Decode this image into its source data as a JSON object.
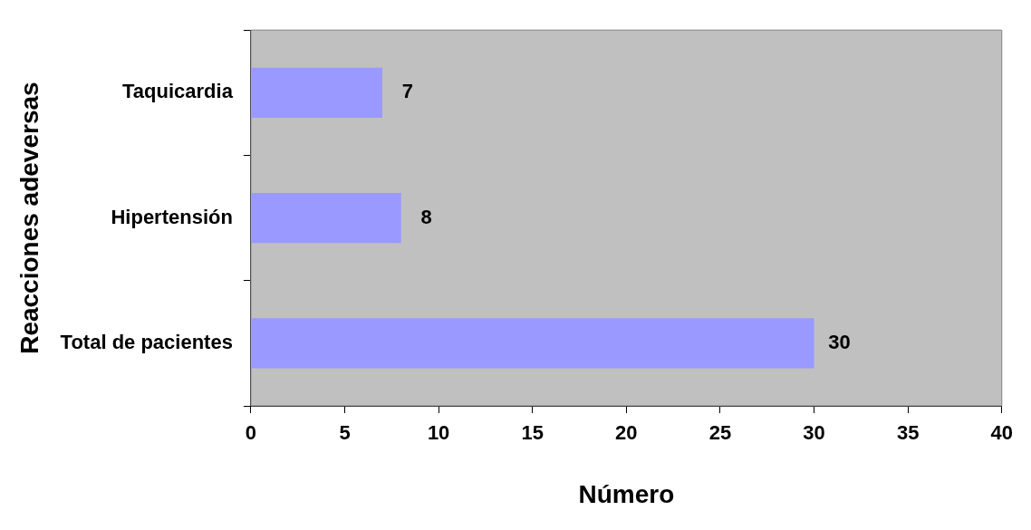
{
  "chart_data": {
    "type": "bar",
    "orientation": "horizontal",
    "categories": [
      "Taquicardia",
      "Hipertensión",
      "Total de pacientes"
    ],
    "values": [
      7,
      8,
      30
    ],
    "color": "#9999ff",
    "xlim": [
      0,
      40
    ],
    "xticks": [
      0,
      5,
      10,
      15,
      20,
      25,
      30,
      35,
      40
    ],
    "xlabel": "Número",
    "ylabel": "Reacciones adeversas",
    "data_labels": true,
    "grid": false,
    "legend": false
  }
}
